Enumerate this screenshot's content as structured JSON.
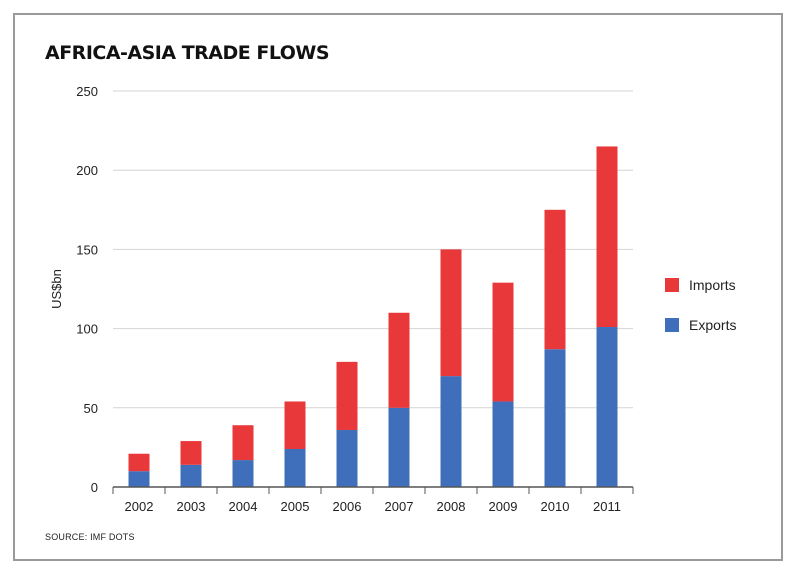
{
  "title": "AFRICA-ASIA TRADE FLOWS",
  "source": "SOURCE: IMF DOTS",
  "colors": {
    "imports": "#e8383a",
    "exports": "#3f6fbb",
    "grid": "#d4d4d4",
    "axis": "#555555"
  },
  "chart_data": {
    "type": "bar",
    "stacked": true,
    "categories": [
      "2002",
      "2003",
      "2004",
      "2005",
      "2006",
      "2007",
      "2008",
      "2009",
      "2010",
      "2011"
    ],
    "series": [
      {
        "name": "Exports",
        "values": [
          10,
          14,
          17,
          24,
          36,
          50,
          70,
          54,
          87,
          101
        ]
      },
      {
        "name": "Imports",
        "values": [
          11,
          15,
          22,
          30,
          43,
          60,
          80,
          75,
          88,
          114
        ]
      }
    ],
    "ylabel": "US$bn",
    "xlabel": "",
    "ylim": [
      0,
      250
    ],
    "yticks": [
      0,
      50,
      100,
      150,
      200,
      250
    ],
    "grid": true,
    "legend_position": "right",
    "legend_order": [
      "Imports",
      "Exports"
    ]
  }
}
